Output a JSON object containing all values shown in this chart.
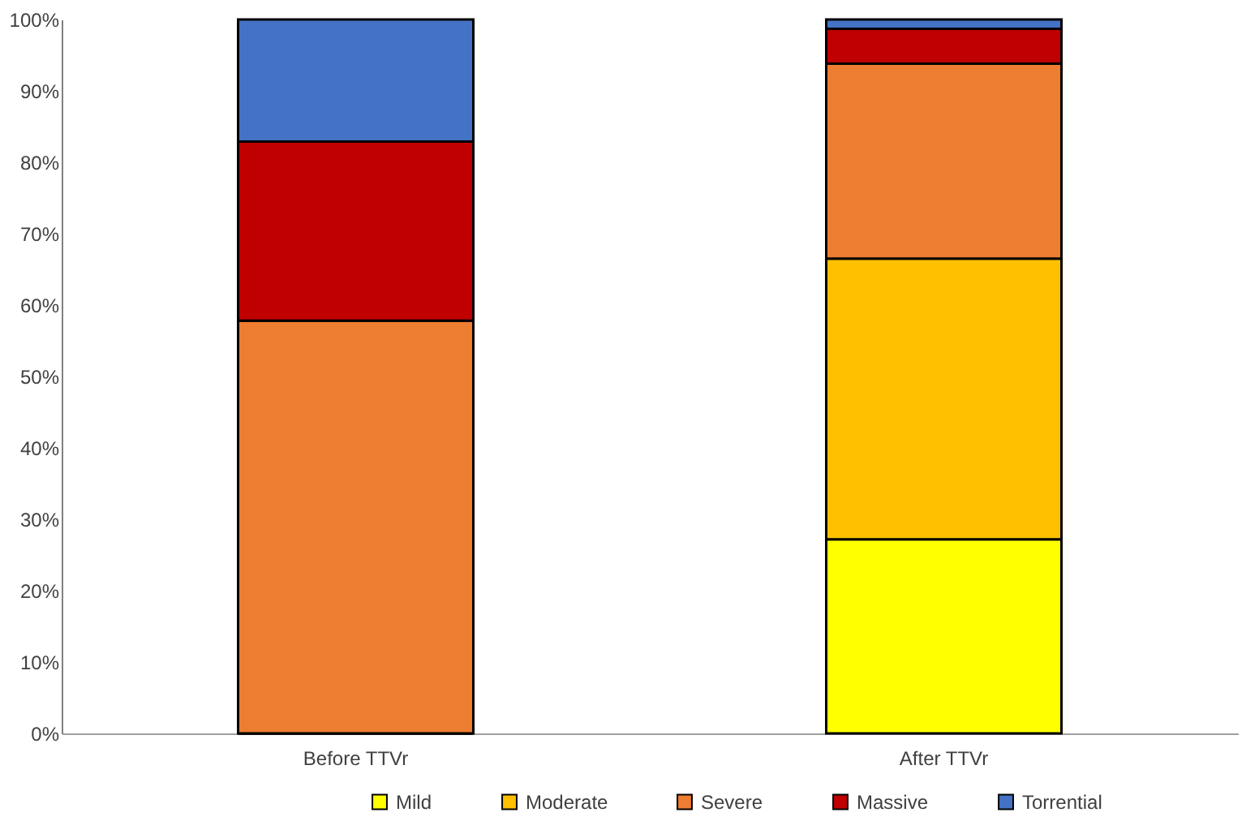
{
  "chart_data": {
    "type": "bar",
    "stacked": true,
    "categories": [
      "Before TTVr",
      "After TTVr"
    ],
    "series": [
      {
        "name": "Mild",
        "color": "#ffff00",
        "values": [
          0,
          27.2
        ]
      },
      {
        "name": "Moderate",
        "color": "#ffc000",
        "values": [
          0,
          39.3
        ]
      },
      {
        "name": "Severe",
        "color": "#ed7d31",
        "values": [
          57.8,
          27.3
        ]
      },
      {
        "name": "Massive",
        "color": "#c00000",
        "values": [
          25.1,
          4.9
        ]
      },
      {
        "name": "Torrential",
        "color": "#4472c4",
        "values": [
          17.1,
          1.3
        ]
      }
    ],
    "ylim": [
      0,
      100
    ],
    "yticks": [
      {
        "value": 0,
        "label": "0%"
      },
      {
        "value": 10,
        "label": "10%"
      },
      {
        "value": 20,
        "label": "20%"
      },
      {
        "value": 30,
        "label": "30%"
      },
      {
        "value": 40,
        "label": "40%"
      },
      {
        "value": 50,
        "label": "50%"
      },
      {
        "value": 60,
        "label": "60%"
      },
      {
        "value": 70,
        "label": "70%"
      },
      {
        "value": 80,
        "label": "80%"
      },
      {
        "value": 90,
        "label": "90%"
      },
      {
        "value": 100,
        "label": "100%"
      }
    ],
    "grid": false,
    "legend": "bottom"
  }
}
